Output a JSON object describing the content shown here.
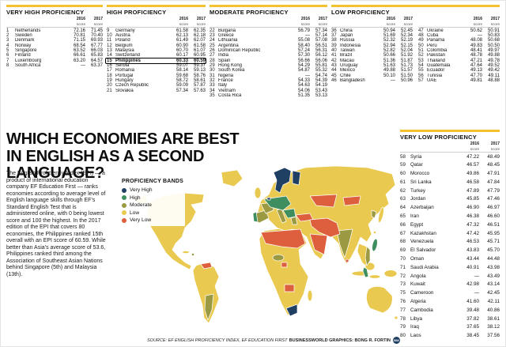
{
  "accent_color": "#f2c230",
  "score_header": {
    "y2016": "2016",
    "y2017": "2017",
    "score_label": "score"
  },
  "legend": {
    "title": "PROFICIENCY BANDS",
    "items": [
      {
        "label": "Very High",
        "color": "#1f3f63"
      },
      {
        "label": "High",
        "color": "#3f8e5f"
      },
      {
        "label": "Moderate",
        "color": "#9b9a43"
      },
      {
        "label": "Low",
        "color": "#e9c94f"
      },
      {
        "label": "Very Low",
        "color": "#dd5f3d"
      }
    ]
  },
  "intro": "The English Proficiency Index (EPI) — a product of international education company EF Education First — ranks economies according to average level of English language skills through EF’s Standard English Test that is administered online, with 0 being lowest score and 100 the highest. In the 2017 edition of the EPI that covers 80 economies, the Philippines ranked 15th overall with an EPI score of 60.59. While better than Asia’s average score of 53.6, Philippines ranked third among the Association of Southeast Asian Nations behind Singapore (5th) and Malaysia (13th).",
  "source": "SOURCE: EF ENGLISH PROFICIENCY INDEX, EF EDUCATION FIRST",
  "credit": "BUSINESSWORLD GRAPHICS: BONG R. FORTIN",
  "logo_text": "BW",
  "chart_data": {
    "type": "table",
    "title": "WHICH ECONOMIES ARE BEST IN ENGLISH AS A SECOND LANGUAGE?",
    "columns": [
      "Rank",
      "Economy",
      "2016 score",
      "2017 score"
    ],
    "highlight_rank": 15,
    "bands": [
      {
        "name": "VERY HIGH PROFICIENCY",
        "rows": [
          [
            1,
            "Netherlands",
            "72.16",
            "71.45"
          ],
          [
            2,
            "Sweden",
            "70.81",
            "70.40"
          ],
          [
            3,
            "Denmark",
            "71.15",
            "69.93"
          ],
          [
            4,
            "Norway",
            "68.54",
            "67.77"
          ],
          [
            5,
            "Singapore",
            "63.52",
            "66.03"
          ],
          [
            6,
            "Finland",
            "66.61",
            "65.83"
          ],
          [
            7,
            "Luxembourg",
            "63.20",
            "64.57"
          ],
          [
            8,
            "South Africa",
            "—",
            "63.37"
          ]
        ]
      },
      {
        "name": "HIGH PROFICIENCY",
        "rows": [
          [
            9,
            "Germany",
            "61.58",
            "62.35"
          ],
          [
            10,
            "Austria",
            "62.13",
            "62.18"
          ],
          [
            11,
            "Poland",
            "61.49",
            "62.07"
          ],
          [
            12,
            "Belgium",
            "60.90",
            "61.58"
          ],
          [
            13,
            "Malaysia",
            "60.70",
            "61.07"
          ],
          [
            14,
            "Switzerland",
            "60.17",
            "60.95"
          ],
          [
            15,
            "Philippines",
            "60.33",
            "60.59"
          ],
          [
            16,
            "Serbia",
            "59.07",
            "59.37"
          ],
          [
            17,
            "Romania",
            "58.14",
            "59.13"
          ],
          [
            18,
            "Portugal",
            "59.68",
            "58.76"
          ],
          [
            19,
            "Hungary",
            "58.72",
            "58.61"
          ],
          [
            20,
            "Czech Republic",
            "59.09",
            "57.87"
          ],
          [
            21,
            "Slovakia",
            "57.34",
            "57.63"
          ]
        ]
      },
      {
        "name": "MODERATE PROFICIENCY",
        "rows": [
          [
            22,
            "Bulgaria",
            "56.79",
            "57.34"
          ],
          [
            23,
            "Greece",
            "—",
            "57.14"
          ],
          [
            24,
            "Lithuania",
            "55.08",
            "57.08"
          ],
          [
            25,
            "Argentina",
            "58.40",
            "56.51"
          ],
          [
            26,
            "Dominican Republic",
            "57.24",
            "56.31"
          ],
          [
            27,
            "India",
            "57.30",
            "56.12"
          ],
          [
            28,
            "Spain",
            "56.66",
            "56.06"
          ],
          [
            29,
            "Hong Kong",
            "54.29",
            "55.81"
          ],
          [
            30,
            "South Korea",
            "54.87",
            "55.32"
          ],
          [
            31,
            "Nigeria",
            "—",
            "54.74"
          ],
          [
            32,
            "France",
            "54.33",
            "54.39"
          ],
          [
            33,
            "Italy",
            "54.63",
            "54.19"
          ],
          [
            34,
            "Vietnam",
            "54.06",
            "53.43"
          ],
          [
            35,
            "Costa Rica",
            "51.35",
            "53.13"
          ]
        ]
      },
      {
        "name": "LOW PROFICIENCY",
        "rows": [
          [
            36,
            "China",
            "50.94",
            "52.45"
          ],
          [
            37,
            "Japan",
            "51.69",
            "52.34"
          ],
          [
            38,
            "Russia",
            "52.32",
            "52.19"
          ],
          [
            39,
            "Indonesia",
            "52.94",
            "52.15"
          ],
          [
            40,
            "Taiwan",
            "52.82",
            "52.04"
          ],
          [
            41,
            "Brazil",
            "50.66",
            "51.92"
          ],
          [
            42,
            "Macau",
            "51.36",
            "51.87"
          ],
          [
            43,
            "Uruguay",
            "51.63",
            "51.73"
          ],
          [
            44,
            "Mexico",
            "49.88",
            "51.57"
          ],
          [
            45,
            "Chile",
            "50.10",
            "51.50"
          ],
          [
            46,
            "Bangladesh",
            "—",
            "50.96"
          ]
        ]
      },
      {
        "name": "",
        "rows": [
          [
            47,
            "Ukraine",
            "50.62",
            "50.91"
          ],
          [
            48,
            "Cuba",
            "—",
            "50.83"
          ],
          [
            49,
            "Panama",
            "48.08",
            "50.68"
          ],
          [
            50,
            "Peru",
            "49.83",
            "50.50"
          ],
          [
            51,
            "Colombia",
            "48.41",
            "49.97"
          ],
          [
            52,
            "Pakistan",
            "48.78",
            "49.88"
          ],
          [
            53,
            "Thailand",
            "47.21",
            "49.78"
          ],
          [
            54,
            "Guatemala",
            "47.64",
            "49.52"
          ],
          [
            55,
            "Ecuador",
            "49.13",
            "49.42"
          ],
          [
            56,
            "Tunisia",
            "47.70",
            "49.11"
          ],
          [
            57,
            "UAE",
            "49.81",
            "48.88"
          ]
        ]
      },
      {
        "name": "VERY LOW PROFICIENCY",
        "rows": [
          [
            58,
            "Syria",
            "47.22",
            "48.49"
          ],
          [
            59,
            "Qatar",
            "46.57",
            "48.45"
          ],
          [
            60,
            "Morocco",
            "49.86",
            "47.91"
          ],
          [
            61,
            "Sri Lanka",
            "46.58",
            "47.84"
          ],
          [
            62,
            "Turkey",
            "47.89",
            "47.79"
          ],
          [
            63,
            "Jordan",
            "45.85",
            "47.46"
          ],
          [
            64,
            "Azerbaijan",
            "46.90",
            "46.97"
          ],
          [
            65,
            "Iran",
            "46.38",
            "46.60"
          ],
          [
            66,
            "Egypt",
            "47.32",
            "46.51"
          ],
          [
            67,
            "Kazakhstan",
            "47.42",
            "45.95"
          ],
          [
            68,
            "Venezuela",
            "46.53",
            "45.71"
          ],
          [
            69,
            "El Salvador",
            "43.83",
            "45.70"
          ],
          [
            70,
            "Oman",
            "43.44",
            "44.48"
          ],
          [
            71,
            "Saudi Arabia",
            "40.91",
            "43.98"
          ],
          [
            72,
            "Angola",
            "—",
            "43.49"
          ],
          [
            73,
            "Kuwait",
            "42.98",
            "43.14"
          ],
          [
            75,
            "Cameroon",
            "—",
            "42.45"
          ],
          [
            76,
            "Algeria",
            "41.60",
            "42.11"
          ],
          [
            77,
            "Cambodia",
            "39.48",
            "40.86"
          ],
          [
            78,
            "Libya",
            "37.82",
            "38.61"
          ],
          [
            79,
            "Iraq",
            "37.65",
            "38.12"
          ],
          [
            80,
            "Laos",
            "38.45",
            "37.56"
          ]
        ]
      }
    ]
  }
}
